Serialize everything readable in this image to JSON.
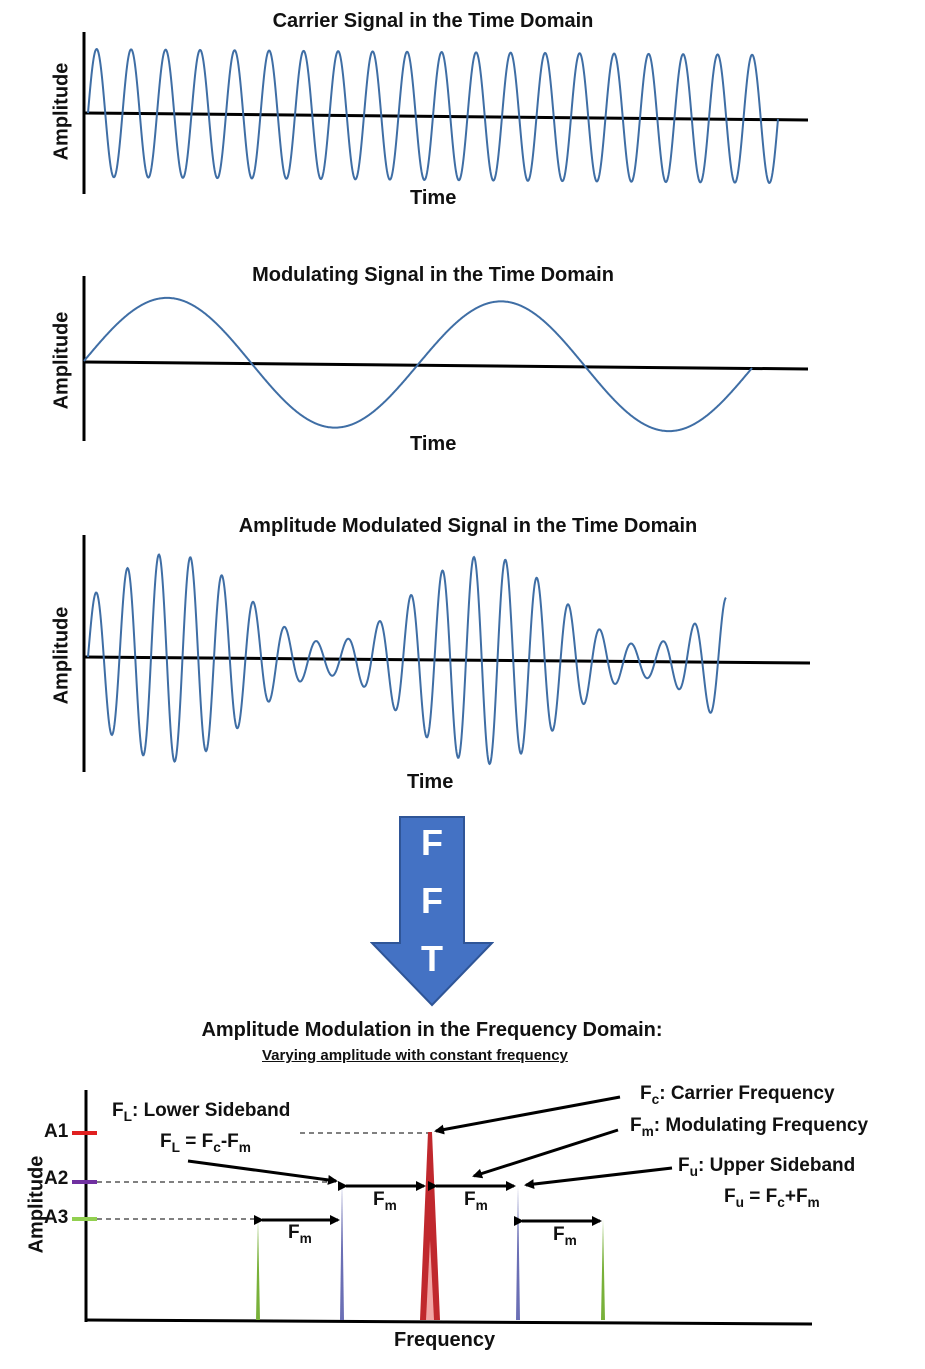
{
  "panels": {
    "carrier": {
      "title": "Carrier Signal in the Time Domain",
      "xlabel": "Time",
      "ylabel": "Amplitude"
    },
    "modulating": {
      "title": "Modulating Signal in the Time Domain",
      "xlabel": "Time",
      "ylabel": "Amplitude"
    },
    "am": {
      "title": "Amplitude Modulated Signal in the Time Domain",
      "xlabel": "Time",
      "ylabel": "Amplitude"
    }
  },
  "fft": {
    "letters": [
      "F",
      "F",
      "T"
    ],
    "color": "#4472c4"
  },
  "freq": {
    "title": "Amplitude Modulation in the Frequency Domain:",
    "subtitle": "Varying amplitude with constant frequency",
    "xlabel": "Frequency",
    "ylabel": "Amplitude",
    "levels": [
      "A1",
      "A2",
      "A3"
    ],
    "level_colors": [
      "#e02020",
      "#7030a0",
      "#92d050"
    ],
    "lower_sideband": {
      "base": "F",
      "sub": "L",
      "text": ": Lower Sideband"
    },
    "lower_formula": {
      "a": "F",
      "a_sub": "L",
      "eq": " = F",
      "b_sub": "c",
      "op": "-F",
      "c_sub": "m"
    },
    "carrier": {
      "base": "F",
      "sub": "c",
      "text": ": Carrier Frequency"
    },
    "modulating": {
      "base": "F",
      "sub": "m",
      "text": ": Modulating Frequency"
    },
    "upper_sideband": {
      "base": "F",
      "sub": "u",
      "text": ": Upper Sideband"
    },
    "upper_formula": {
      "a": "F",
      "a_sub": "u",
      "eq": " = F",
      "b_sub": "c",
      "op": "+F",
      "c_sub": "m"
    },
    "spacing": {
      "base": "F",
      "sub": "m"
    },
    "wave_color": "#3f6ea5"
  }
}
